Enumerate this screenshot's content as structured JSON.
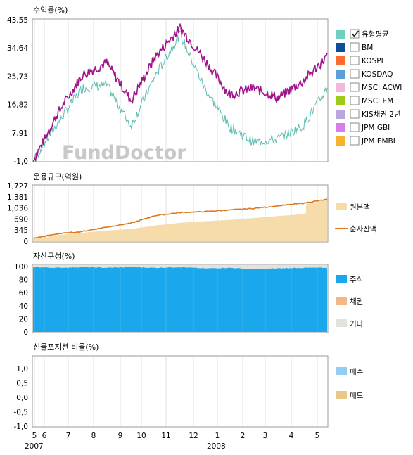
{
  "watermark": "FundDoctor",
  "x_axis": {
    "month_labels": [
      "5",
      "6",
      "7",
      "8",
      "9",
      "10",
      "11",
      "12",
      "1",
      "2",
      "3",
      "4",
      "5"
    ],
    "year_labels": [
      "2007",
      "2008"
    ]
  },
  "colors": {
    "fund": "#a0158c",
    "comparison": "#5cbcb0",
    "principal_fill": "#f5dcaa",
    "net_asset_line": "#d9781c",
    "stock": "#1aa7ec",
    "bond": "#f4b886",
    "other": "#e3e3dc",
    "buy": "#93cdf2",
    "sell": "#e8c987"
  },
  "chart_data": [
    {
      "type": "line",
      "title": "수익률(%)",
      "yticks": [
        "43,55",
        "34,64",
        "25,73",
        "16,82",
        "7,91",
        "-1,0"
      ],
      "ylim": [
        -1.0,
        43.55
      ],
      "x": [
        "2007-05",
        "2007-06",
        "2007-07",
        "2007-08",
        "2007-09",
        "2007-10",
        "2007-11",
        "2007-12",
        "2008-01",
        "2008-02",
        "2008-03",
        "2008-04",
        "2008-05"
      ],
      "series": [
        {
          "values": [
            -1.0,
            14.0,
            26.0,
            30.0,
            18.0,
            32.0,
            41.0,
            31.0,
            20.0,
            22.0,
            19.0,
            24.0,
            32.0
          ]
        },
        {
          "values": [
            -1.0,
            11.0,
            22.0,
            23.0,
            10.0,
            26.0,
            39.0,
            22.0,
            10.0,
            5.0,
            6.0,
            10.0,
            22.0
          ]
        }
      ],
      "legend": [
        {
          "label": "유형평균",
          "color": "#6fcfc0",
          "checked": true
        },
        {
          "label": "BM",
          "color": "#0c4f96",
          "checked": false
        },
        {
          "label": "KOSPI",
          "color": "#ff6a2e",
          "checked": false
        },
        {
          "label": "KOSDAQ",
          "color": "#5b9fd4",
          "checked": false
        },
        {
          "label": "MSCI ACWI",
          "color": "#f2b7db",
          "checked": false
        },
        {
          "label": "MSCI EM",
          "color": "#9ccc18",
          "checked": false
        },
        {
          "label": "KIS채권 2년",
          "color": "#b6a8dc",
          "checked": false
        },
        {
          "label": "JPM GBI",
          "color": "#d580ea",
          "checked": false
        },
        {
          "label": "JPM EMBI",
          "color": "#f5b32e",
          "checked": false
        }
      ]
    },
    {
      "type": "area",
      "title": "운용규모(억원)",
      "yticks": [
        "1,727",
        "1,381",
        "1,036",
        "690",
        "345",
        "0"
      ],
      "ylim": [
        0,
        1727
      ],
      "x": [
        "2007-05",
        "2007-06",
        "2007-07",
        "2007-08",
        "2007-09",
        "2007-10",
        "2007-11",
        "2007-12",
        "2008-01",
        "2008-02",
        "2008-03",
        "2008-04",
        "2008-05"
      ],
      "series": [
        {
          "name": "원본액",
          "values": [
            70,
            190,
            260,
            330,
            380,
            490,
            570,
            620,
            660,
            720,
            780,
            840,
            1280
          ]
        },
        {
          "name": "순자산액",
          "values": [
            90,
            230,
            300,
            440,
            560,
            800,
            890,
            920,
            970,
            1020,
            1100,
            1180,
            1300
          ]
        }
      ]
    },
    {
      "type": "area",
      "title": "자산구성(%)",
      "yticks": [
        "100",
        "80",
        "60",
        "40",
        "20",
        "0"
      ],
      "ylim": [
        0,
        100
      ],
      "series": [
        {
          "name": "주식",
          "values": [
            97,
            96,
            97,
            96,
            97,
            96,
            97,
            95,
            96,
            94,
            95,
            96,
            96
          ]
        },
        {
          "name": "채권",
          "values": [
            0,
            0,
            0,
            0,
            0,
            0,
            0,
            0,
            0,
            0,
            0,
            0,
            0
          ]
        },
        {
          "name": "기타",
          "values": [
            3,
            4,
            3,
            4,
            3,
            4,
            3,
            5,
            4,
            6,
            5,
            4,
            4
          ]
        }
      ]
    },
    {
      "type": "line",
      "title": "선물포지션 비율(%)",
      "yticks": [
        "1,0",
        "0,5",
        "0,0",
        "-0,5",
        "-1,0"
      ],
      "ylim": [
        -1.0,
        1.0
      ],
      "series": [
        {
          "name": "매수",
          "values": []
        },
        {
          "name": "매도",
          "values": []
        }
      ]
    }
  ]
}
